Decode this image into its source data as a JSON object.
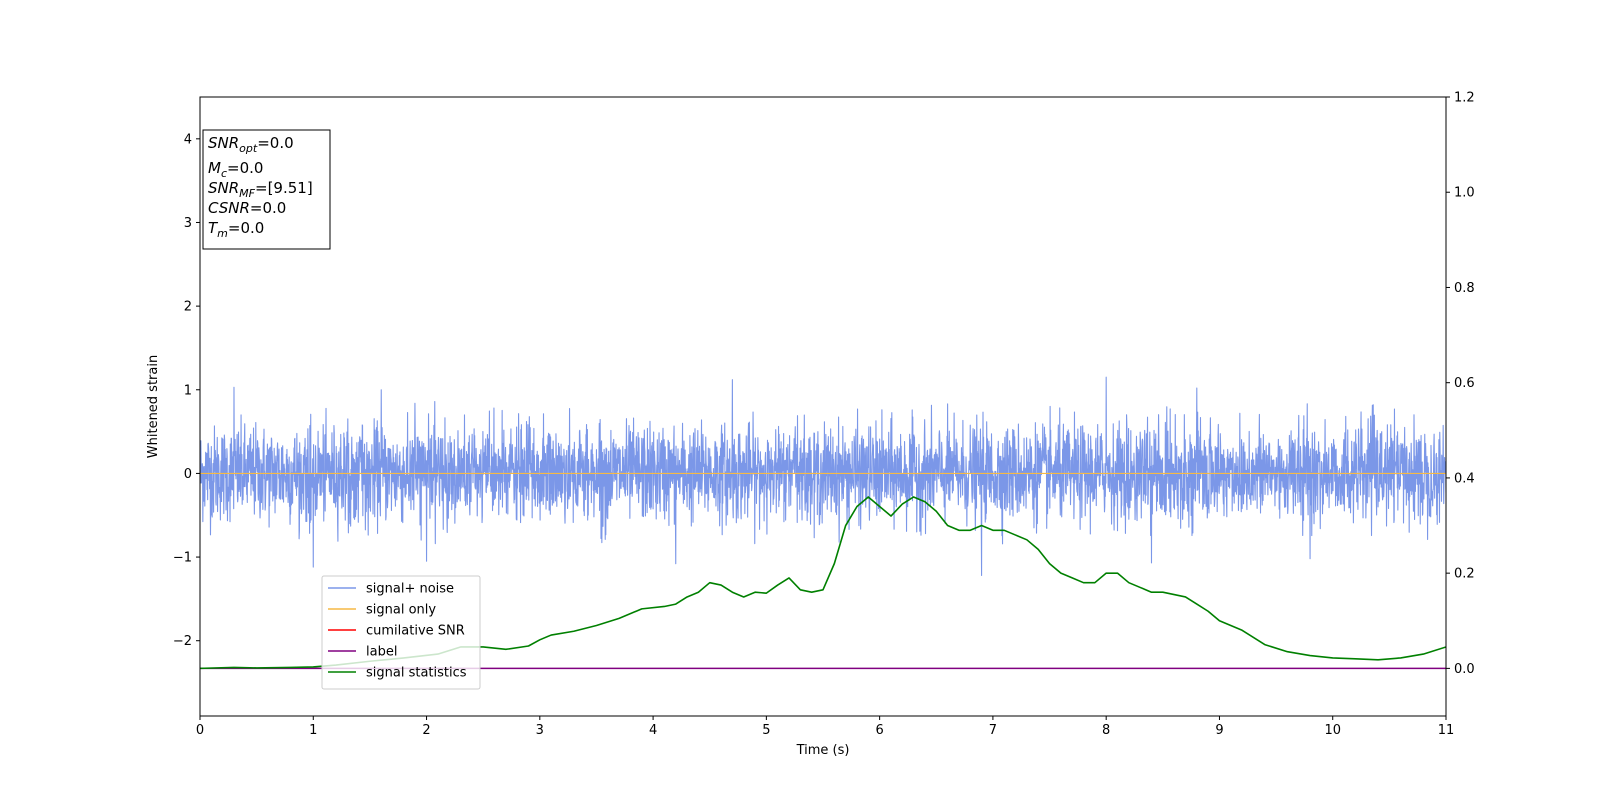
{
  "chart_data": {
    "type": "line",
    "xlabel": "Time (s)",
    "ylabel_left": "Whitened strain",
    "xlim": [
      0,
      11
    ],
    "ylim_left": [
      -2.9,
      4.5
    ],
    "ylim_right": [
      -0.1,
      1.2
    ],
    "xticks": [
      0,
      1,
      2,
      3,
      4,
      5,
      6,
      7,
      8,
      9,
      10,
      11
    ],
    "yticks_left": [
      -2,
      -1,
      0,
      1,
      2,
      3,
      4
    ],
    "yticks_right": [
      0.0,
      0.2,
      0.4,
      0.6,
      0.8,
      1.0,
      1.2
    ],
    "yticks_right_labels": [
      "0.0",
      "0.2",
      "0.4",
      "0.6",
      "0.8",
      "1.0",
      "1.2"
    ],
    "grid": false,
    "legend_position": "lower-left",
    "stats": {
      "snr_opt": {
        "base": "SNR",
        "sub": "opt",
        "value": "=0.0"
      },
      "mc": {
        "base": "M",
        "sub": "c",
        "value": "=0.0"
      },
      "snr_mf": {
        "base": "SNR",
        "sub": "MF",
        "value": "=[9.51]"
      },
      "csnr": {
        "base": "CSNR",
        "sub": "",
        "value": "=0.0"
      },
      "tm": {
        "base": "T",
        "sub": "m",
        "value": "=0.0"
      }
    },
    "series": [
      {
        "name": "signal+ noise",
        "axis": "left",
        "color": "#7b97e8",
        "style": "dense noise",
        "envelope_upper_typical": 0.6,
        "envelope_lower_typical": -0.6,
        "peaks": [
          [
            0.3,
            1.03
          ],
          [
            1.6,
            1.0
          ],
          [
            4.7,
            1.12
          ],
          [
            8.0,
            1.15
          ],
          [
            8.8,
            1.02
          ],
          [
            1.0,
            -1.12
          ],
          [
            2.0,
            -1.05
          ],
          [
            4.2,
            -1.08
          ],
          [
            6.9,
            -1.22
          ],
          [
            8.4,
            -1.07
          ],
          [
            9.8,
            -1.02
          ]
        ]
      },
      {
        "name": "signal only",
        "axis": "left",
        "color": "#f5b945",
        "x": [
          0,
          11
        ],
        "y": [
          0,
          0
        ]
      },
      {
        "name": "cumilative SNR",
        "axis": "right",
        "color": "#ff0000",
        "x": [],
        "y": []
      },
      {
        "name": "label",
        "axis": "right",
        "color": "#800080",
        "x": [
          0,
          11
        ],
        "y": [
          0,
          0
        ]
      },
      {
        "name": "signal statistics",
        "axis": "right",
        "color": "#008000",
        "x": [
          0,
          0.3,
          0.5,
          0.8,
          1.0,
          1.2,
          1.5,
          1.8,
          2.1,
          2.3,
          2.5,
          2.7,
          2.9,
          3.0,
          3.1,
          3.3,
          3.5,
          3.7,
          3.9,
          4.1,
          4.2,
          4.3,
          4.4,
          4.5,
          4.6,
          4.7,
          4.8,
          4.9,
          5.0,
          5.1,
          5.2,
          5.3,
          5.4,
          5.5,
          5.6,
          5.7,
          5.8,
          5.9,
          6.0,
          6.1,
          6.2,
          6.3,
          6.4,
          6.5,
          6.6,
          6.7,
          6.8,
          6.9,
          7.0,
          7.1,
          7.2,
          7.3,
          7.4,
          7.5,
          7.6,
          7.7,
          7.8,
          7.9,
          8.0,
          8.1,
          8.2,
          8.3,
          8.4,
          8.5,
          8.6,
          8.7,
          8.8,
          8.9,
          9.0,
          9.2,
          9.4,
          9.6,
          9.8,
          10.0,
          10.2,
          10.4,
          10.6,
          10.8,
          11.0
        ],
        "y": [
          0.0,
          0.002,
          0.001,
          0.002,
          0.003,
          0.007,
          0.015,
          0.022,
          0.03,
          0.045,
          0.045,
          0.04,
          0.047,
          0.06,
          0.07,
          0.078,
          0.09,
          0.105,
          0.125,
          0.13,
          0.135,
          0.15,
          0.16,
          0.18,
          0.175,
          0.16,
          0.15,
          0.16,
          0.158,
          0.175,
          0.19,
          0.165,
          0.16,
          0.165,
          0.22,
          0.3,
          0.34,
          0.36,
          0.34,
          0.32,
          0.345,
          0.36,
          0.35,
          0.33,
          0.3,
          0.29,
          0.29,
          0.3,
          0.29,
          0.29,
          0.28,
          0.27,
          0.25,
          0.22,
          0.2,
          0.19,
          0.18,
          0.18,
          0.2,
          0.2,
          0.18,
          0.17,
          0.16,
          0.16,
          0.155,
          0.15,
          0.135,
          0.12,
          0.1,
          0.08,
          0.05,
          0.035,
          0.027,
          0.022,
          0.02,
          0.018,
          0.022,
          0.03,
          0.045
        ]
      }
    ]
  }
}
